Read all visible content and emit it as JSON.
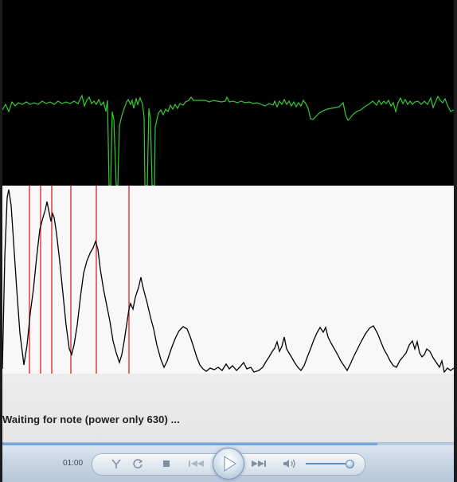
{
  "status": {
    "message": "Waiting for note (power only 630) ..."
  },
  "player": {
    "time": "01:00",
    "seek_progress": 0.83,
    "volume_level": 0.92
  },
  "colors": {
    "waveform_bg": "#000000",
    "waveform_line": "#33cc33",
    "spectrum_bg": "#f8f8f8",
    "spectrum_line": "#000000",
    "marker_line": "#dd2222"
  },
  "icons": {
    "switch_view": "switch-view-icon",
    "repeat": "repeat-icon",
    "stop": "stop-icon",
    "previous": "previous-track-icon",
    "play": "play-icon",
    "next": "next-track-icon",
    "volume": "speaker-icon"
  }
}
